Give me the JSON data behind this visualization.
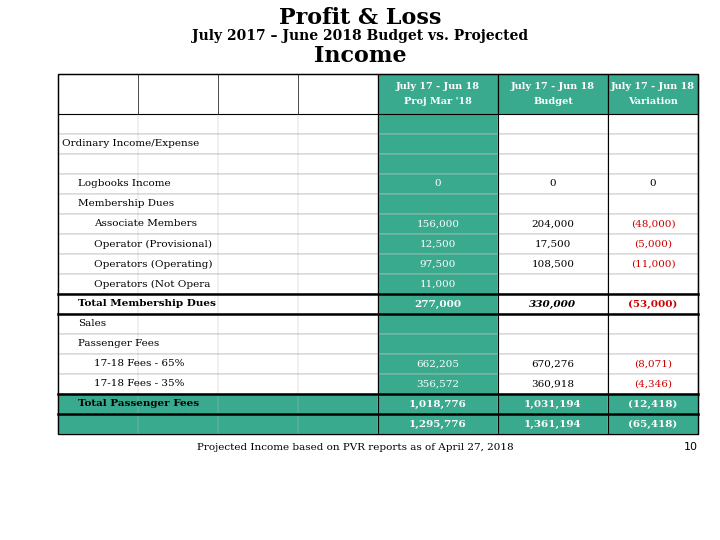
{
  "title_line1": "Profit & Loss",
  "title_line2": "July 2017 – June 2018 Budget vs. Projected",
  "title_line3": "Income",
  "footer": "Projected Income based on PVR reports as of April 27, 2018",
  "page_num": "10",
  "teal": "#3aaa8e",
  "red": "#cc0000",
  "col_headers": [
    "July 17 - Jun 18\nProj Mar '18",
    "July 17 - Jun 18\nBudget",
    "July 17 - Jun 18\nVariation"
  ],
  "rows": [
    {
      "label": "",
      "indent": 0,
      "values": [
        "",
        "",
        ""
      ],
      "bold": false,
      "label_bold": false,
      "bg": null,
      "border_top": false,
      "border_bottom": false,
      "variation_red": false
    },
    {
      "label": "Ordinary Income/Expense",
      "indent": 0,
      "values": [
        "",
        "",
        ""
      ],
      "bold": false,
      "label_bold": false,
      "bg": null,
      "border_top": false,
      "border_bottom": false,
      "variation_red": false
    },
    {
      "label": "",
      "indent": 0,
      "values": [
        "",
        "",
        ""
      ],
      "bold": false,
      "label_bold": false,
      "bg": null,
      "border_top": false,
      "border_bottom": false,
      "variation_red": false
    },
    {
      "label": "Logbooks Income",
      "indent": 1,
      "values": [
        "0",
        "0",
        "0"
      ],
      "bold": false,
      "label_bold": false,
      "bg": null,
      "border_top": false,
      "border_bottom": false,
      "variation_red": false
    },
    {
      "label": "Membership Dues",
      "indent": 1,
      "values": [
        "",
        "",
        ""
      ],
      "bold": false,
      "label_bold": false,
      "bg": null,
      "border_top": false,
      "border_bottom": false,
      "variation_red": false
    },
    {
      "label": "Associate Members",
      "indent": 2,
      "values": [
        "156,000",
        "204,000",
        "(48,000)"
      ],
      "bold": false,
      "label_bold": false,
      "bg": null,
      "border_top": false,
      "border_bottom": false,
      "variation_red": true
    },
    {
      "label": "Operator (Provisional)",
      "indent": 2,
      "values": [
        "12,500",
        "17,500",
        "(5,000)"
      ],
      "bold": false,
      "label_bold": false,
      "bg": null,
      "border_top": false,
      "border_bottom": false,
      "variation_red": true
    },
    {
      "label": "Operators (Operating)",
      "indent": 2,
      "values": [
        "97,500",
        "108,500",
        "(11,000)"
      ],
      "bold": false,
      "label_bold": false,
      "bg": null,
      "border_top": false,
      "border_bottom": false,
      "variation_red": true
    },
    {
      "label": "Operators (Not Opera",
      "indent": 2,
      "values": [
        "11,000",
        "",
        ""
      ],
      "bold": false,
      "label_bold": false,
      "bg": null,
      "border_top": false,
      "border_bottom": false,
      "variation_red": false
    },
    {
      "label": "Total Membership Dues",
      "indent": 1,
      "values": [
        "277,000",
        "330,000",
        "(53,000)"
      ],
      "bold": true,
      "label_bold": true,
      "bg": null,
      "border_top": true,
      "border_bottom": true,
      "variation_red": true
    },
    {
      "label": "Sales",
      "indent": 1,
      "values": [
        "",
        "",
        ""
      ],
      "bold": false,
      "label_bold": false,
      "bg": null,
      "border_top": false,
      "border_bottom": false,
      "variation_red": false
    },
    {
      "label": "Passenger Fees",
      "indent": 1,
      "values": [
        "",
        "",
        ""
      ],
      "bold": false,
      "label_bold": false,
      "bg": null,
      "border_top": false,
      "border_bottom": false,
      "variation_red": false
    },
    {
      "label": "17-18 Fees - 65%",
      "indent": 2,
      "values": [
        "662,205",
        "670,276",
        "(8,071)"
      ],
      "bold": false,
      "label_bold": false,
      "bg": null,
      "border_top": false,
      "border_bottom": false,
      "variation_red": true
    },
    {
      "label": "17-18 Fees - 35%",
      "indent": 2,
      "values": [
        "356,572",
        "360,918",
        "(4,346)"
      ],
      "bold": false,
      "label_bold": false,
      "bg": null,
      "border_top": false,
      "border_bottom": false,
      "variation_red": true
    },
    {
      "label": "Total Passenger Fees",
      "indent": 1,
      "values": [
        "1,018,776",
        "1,031,194",
        "(12,418)"
      ],
      "bold": true,
      "label_bold": true,
      "bg": "#3aaa8e",
      "border_top": true,
      "border_bottom": true,
      "variation_red": true
    },
    {
      "label": "",
      "indent": 0,
      "values": [
        "1,295,776",
        "1,361,194",
        "(65,418)"
      ],
      "bold": true,
      "label_bold": false,
      "bg": "#3aaa8e",
      "border_top": false,
      "border_bottom": false,
      "variation_red": true
    }
  ]
}
